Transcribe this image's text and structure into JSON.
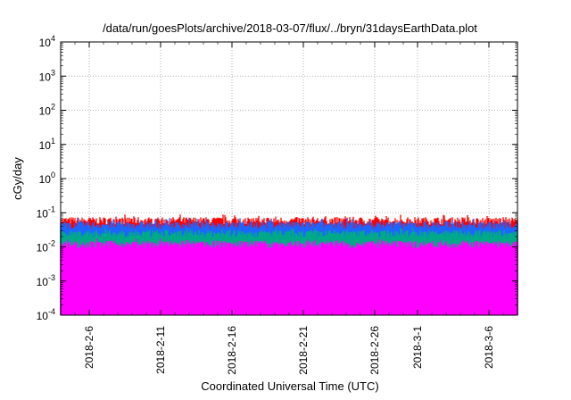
{
  "chart_data": {
    "type": "area",
    "title": "/data/run/goesPlots/archive/2018-03-07/flux/../bryn/31daysEarthData.plot",
    "xlabel": "Coordinated Universal Time (UTC)",
    "ylabel": "cGy/day",
    "yscale": "log",
    "ylim": [
      0.0001,
      10000
    ],
    "xlim": [
      "2018-02-04",
      "2018-03-08"
    ],
    "grid": true,
    "legend": "none",
    "y_ticks": [
      {
        "base": "10",
        "exp": "-4",
        "value": 0.0001
      },
      {
        "base": "10",
        "exp": "-3",
        "value": 0.001
      },
      {
        "base": "10",
        "exp": "-2",
        "value": 0.01
      },
      {
        "base": "10",
        "exp": "-1",
        "value": 0.1
      },
      {
        "base": "10",
        "exp": "0",
        "value": 1
      },
      {
        "base": "10",
        "exp": "1",
        "value": 10
      },
      {
        "base": "10",
        "exp": "2",
        "value": 100
      },
      {
        "base": "10",
        "exp": "3",
        "value": 1000
      },
      {
        "base": "10",
        "exp": "4",
        "value": 10000
      }
    ],
    "x_ticks": [
      {
        "label": "2018-2-6",
        "date": "2018-02-06"
      },
      {
        "label": "2018-2-11",
        "date": "2018-02-11"
      },
      {
        "label": "2018-2-16",
        "date": "2018-02-16"
      },
      {
        "label": "2018-2-21",
        "date": "2018-02-21"
      },
      {
        "label": "2018-2-26",
        "date": "2018-02-26"
      },
      {
        "label": "2018-3-1",
        "date": "2018-03-01"
      },
      {
        "label": "2018-3-6",
        "date": "2018-03-06"
      }
    ],
    "series": [
      {
        "color": "#ff0000",
        "typical_value": 0.06,
        "peak_value": 0.09
      },
      {
        "color": "#1e64ff",
        "typical_value": 0.045,
        "peak_value": 0.07
      },
      {
        "color": "#00aa88",
        "typical_value": 0.025,
        "peak_value": 0.035
      },
      {
        "color": "#ff00ff",
        "typical_value": 0.012,
        "min_value": 0.004
      }
    ],
    "dropouts": [
      {
        "series_color": "#ff00ff",
        "dates": [
          "2018-02-08",
          "2018-02-11",
          "2018-02-14",
          "2018-02-16",
          "2018-02-21",
          "2018-02-22",
          "2018-02-23",
          "2018-03-02",
          "2018-03-05",
          "2018-03-06",
          "2018-03-07"
        ],
        "min_value": 0.0001
      }
    ]
  }
}
